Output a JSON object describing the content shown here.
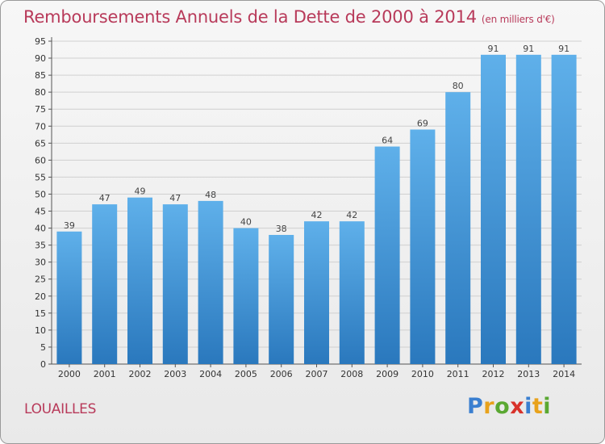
{
  "title": "Remboursements Annuels de la Dette de 2000 à 2014",
  "subtitle": "(en milliers d'€)",
  "commune": "LOUAILLES",
  "logo": {
    "text": "Proxiti",
    "letters": [
      {
        "char": "P",
        "color": "#3a7fd0"
      },
      {
        "char": "r",
        "color": "#e8a21c"
      },
      {
        "char": "o",
        "color": "#5aa832"
      },
      {
        "char": "x",
        "color": "#d8322a"
      },
      {
        "char": "i",
        "color": "#3a7fd0"
      },
      {
        "char": "t",
        "color": "#e8a21c"
      },
      {
        "char": "i",
        "color": "#5aa832"
      }
    ]
  },
  "colors": {
    "bar_top": "#5fb0ea",
    "bar_bottom": "#2a78bd",
    "title": "#b83a5a",
    "grid": "#d0d0d0"
  },
  "chart_data": {
    "type": "bar",
    "title": "Remboursements Annuels de la Dette de 2000 à 2014",
    "subtitle": "(en milliers d'€)",
    "xlabel": "",
    "ylabel": "",
    "categories": [
      "2000",
      "2001",
      "2002",
      "2003",
      "2004",
      "2005",
      "2006",
      "2007",
      "2008",
      "2009",
      "2010",
      "2011",
      "2012",
      "2013",
      "2014"
    ],
    "values": [
      39,
      47,
      49,
      47,
      48,
      40,
      38,
      42,
      42,
      64,
      69,
      80,
      91,
      91,
      91
    ],
    "ylim": [
      0,
      95
    ],
    "yticks": [
      0,
      5,
      10,
      15,
      20,
      25,
      30,
      35,
      40,
      45,
      50,
      55,
      60,
      65,
      70,
      75,
      80,
      85,
      90,
      95
    ],
    "grid": true,
    "data_labels": true
  }
}
